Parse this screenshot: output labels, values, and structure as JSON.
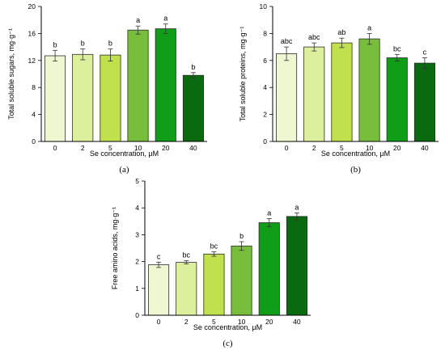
{
  "colors": [
    "#eef6d2",
    "#dcef9d",
    "#c0e04e",
    "#78be3c",
    "#109d18",
    "#0a6a10"
  ],
  "chart_data": [
    {
      "type": "bar",
      "panel": "(a)",
      "categories": [
        "0",
        "2",
        "5",
        "10",
        "20",
        "40"
      ],
      "values": [
        12.7,
        12.9,
        12.8,
        16.5,
        16.7,
        9.8
      ],
      "errors": [
        0.8,
        0.8,
        0.9,
        0.6,
        0.7,
        0.4
      ],
      "letters": [
        "b",
        "b",
        "b",
        "a",
        "a",
        "b"
      ],
      "ylim": [
        0,
        20
      ],
      "yticks": [
        0,
        4,
        8,
        12,
        16,
        20
      ],
      "xlabel": "Se concentration, µM",
      "ylabel": "Total soluble sugars, mg·g⁻¹"
    },
    {
      "type": "bar",
      "panel": "(b)",
      "categories": [
        "0",
        "2",
        "5",
        "10",
        "20",
        "40"
      ],
      "values": [
        6.5,
        7.0,
        7.3,
        7.6,
        6.2,
        5.8
      ],
      "errors": [
        0.5,
        0.3,
        0.35,
        0.4,
        0.25,
        0.4
      ],
      "letters": [
        "abc",
        "abc",
        "ab",
        "a",
        "bc",
        "c"
      ],
      "ylim": [
        0,
        10
      ],
      "yticks": [
        0,
        2,
        4,
        6,
        8,
        10
      ],
      "xlabel": "Se concentration, µM",
      "ylabel": "Total soluble proteins, mg·g⁻¹"
    },
    {
      "type": "bar",
      "panel": "(c)",
      "categories": [
        "0",
        "2",
        "5",
        "10",
        "20",
        "40"
      ],
      "values": [
        1.88,
        1.97,
        2.28,
        2.58,
        3.45,
        3.68
      ],
      "errors": [
        0.1,
        0.06,
        0.08,
        0.16,
        0.15,
        0.13
      ],
      "letters": [
        "c",
        "bc",
        "bc",
        "b",
        "a",
        "a"
      ],
      "ylim": [
        0,
        5
      ],
      "yticks": [
        0,
        1,
        2,
        3,
        4,
        5
      ],
      "xlabel": "Se concentration, µM",
      "ylabel": "Free amino acids, mg·g⁻¹"
    }
  ]
}
